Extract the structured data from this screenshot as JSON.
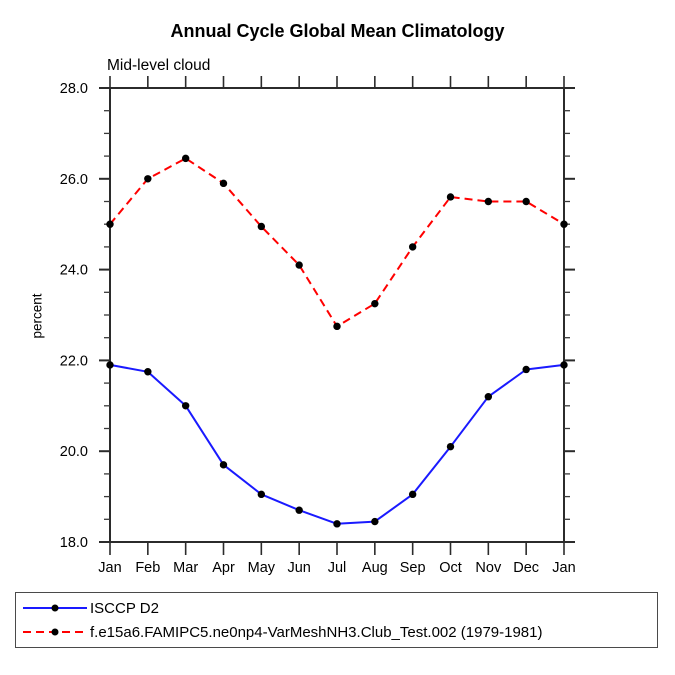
{
  "chart_data": {
    "type": "line",
    "title": "Annual Cycle Global Mean Climatology",
    "subtitle": "Mid-level cloud",
    "ylabel": "percent",
    "xlabel": "",
    "categories": [
      "Jan",
      "Feb",
      "Mar",
      "Apr",
      "May",
      "Jun",
      "Jul",
      "Aug",
      "Sep",
      "Oct",
      "Nov",
      "Dec",
      "Jan"
    ],
    "ylim": [
      18.0,
      28.0
    ],
    "y_major_tick_step": 2.0,
    "y_minor_tick_step": 0.5,
    "y_tick_labels": [
      "18.0",
      "20.0",
      "22.0",
      "24.0",
      "26.0",
      "28.0"
    ],
    "grid": false,
    "legend_position": "bottom-left-box",
    "axis_color": "#2b2b2b",
    "marker_color": "#000000",
    "series": [
      {
        "name": "ISCCP D2",
        "color": "#1a1aff",
        "line_style": "solid",
        "marker": "filled-circle",
        "values": [
          21.9,
          21.75,
          21.0,
          19.7,
          19.05,
          18.7,
          18.4,
          18.45,
          19.05,
          20.1,
          21.2,
          21.8,
          21.9
        ]
      },
      {
        "name": "f.e15a6.FAMIPC5.ne0np4-VarMeshNH3.Club_Test.002 (1979-1981)",
        "color": "#ff0000",
        "line_style": "dashed",
        "marker": "filled-circle",
        "values": [
          25.0,
          26.0,
          26.45,
          25.9,
          24.95,
          24.1,
          22.75,
          23.25,
          24.5,
          25.6,
          25.5,
          25.5,
          25.0
        ]
      }
    ]
  }
}
